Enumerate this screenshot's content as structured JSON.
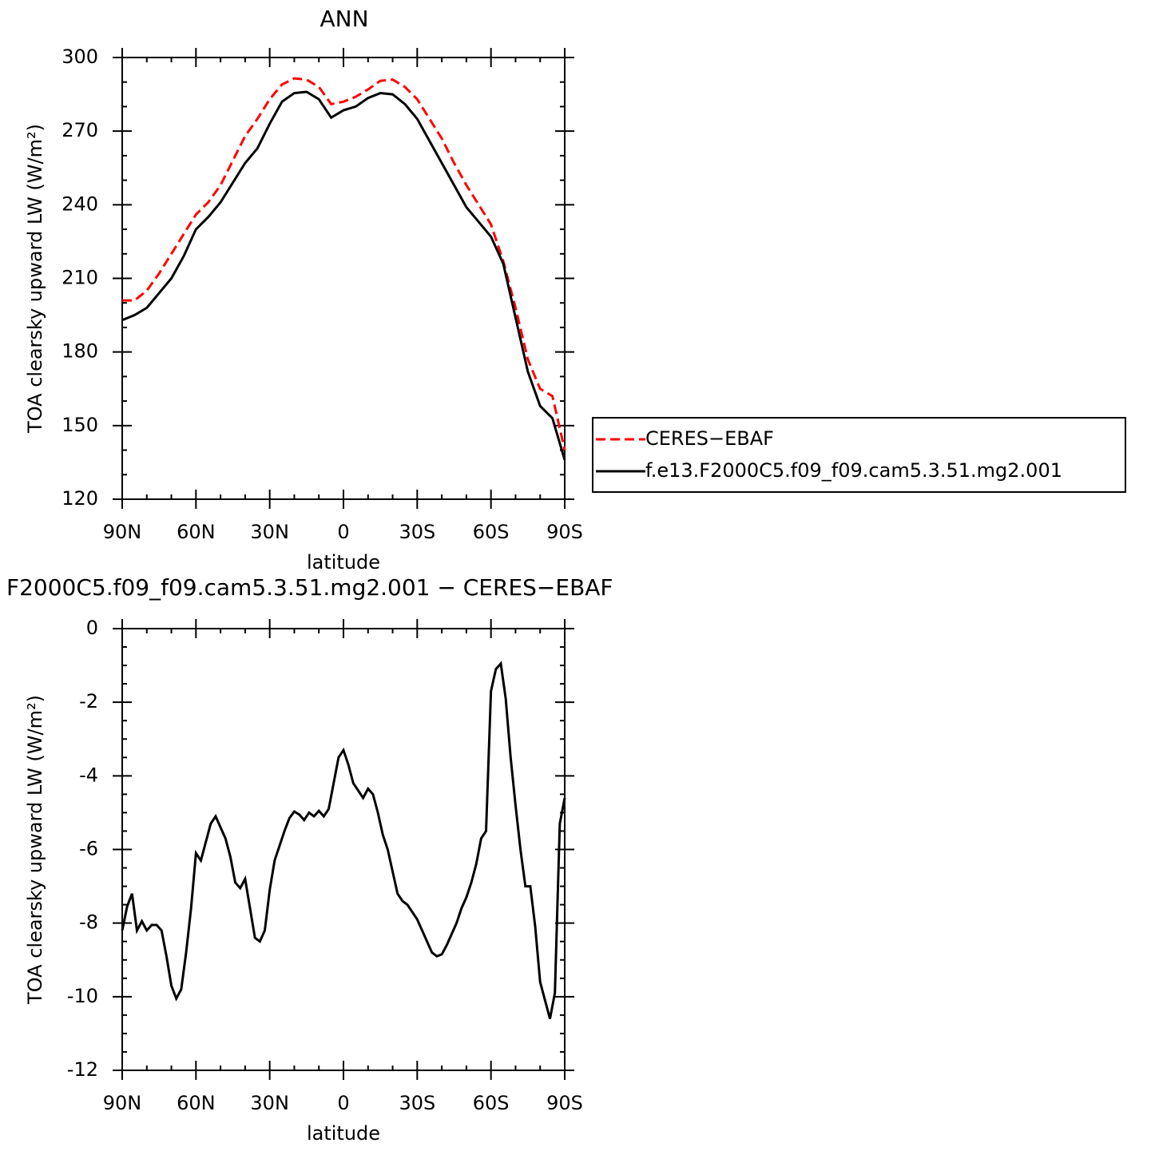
{
  "chart_data": [
    {
      "type": "line",
      "title": "ANN",
      "xlabel": "latitude",
      "ylabel": "TOA clearsky upward LW (W/m²)",
      "x": [
        90,
        85,
        80,
        75,
        70,
        65,
        60,
        55,
        50,
        45,
        40,
        35,
        30,
        25,
        20,
        15,
        10,
        5,
        0,
        -5,
        -10,
        -15,
        -20,
        -25,
        -30,
        -35,
        -40,
        -45,
        -50,
        -55,
        -60,
        -65,
        -70,
        -75,
        -80,
        -85,
        -90
      ],
      "series": [
        {
          "name": "CERES−EBAF",
          "color": "#ff0000",
          "dashed": true,
          "values": [
            201,
            201,
            205,
            212,
            220,
            228,
            236,
            241,
            248,
            258,
            268,
            275,
            283,
            289,
            291.5,
            291,
            288,
            281,
            282,
            284,
            287,
            290.5,
            291,
            288,
            283,
            275,
            267,
            257,
            248,
            240,
            232,
            217,
            198,
            177,
            165,
            162,
            140
          ]
        },
        {
          "name": "f.e13.F2000C5.f09_f09.cam5.3.51.mg2.001",
          "color": "#000000",
          "dashed": false,
          "values": [
            193,
            195,
            198,
            204,
            210,
            219,
            230,
            235,
            241,
            249,
            257,
            263,
            273,
            282,
            285.5,
            286,
            283,
            275.5,
            278.5,
            280,
            283.5,
            285.5,
            285,
            281,
            275,
            266,
            257,
            248,
            239,
            233,
            227,
            216,
            194,
            172,
            158,
            153,
            136
          ]
        }
      ],
      "xlim": [
        90,
        -90
      ],
      "xticks": [
        {
          "value": 90,
          "label": "90N"
        },
        {
          "value": 60,
          "label": "60N"
        },
        {
          "value": 30,
          "label": "30N"
        },
        0,
        {
          "value": -30,
          "label": "30S"
        },
        {
          "value": -60,
          "label": "60S"
        },
        {
          "value": -90,
          "label": "90S"
        }
      ],
      "xminorticks": [
        80,
        70,
        50,
        40,
        20,
        10,
        -10,
        -20,
        -40,
        -50,
        -70,
        -80
      ],
      "ylim": [
        120,
        300
      ],
      "yticks": [
        120,
        150,
        180,
        210,
        240,
        270,
        300
      ],
      "yminorticks": [
        130,
        140,
        160,
        170,
        190,
        200,
        220,
        230,
        250,
        260,
        280,
        290
      ],
      "legend": "right"
    },
    {
      "type": "line",
      "title": "F2000C5.f09_f09.cam5.3.51.mg2.001 − CERES−EBAF",
      "xlabel": "latitude",
      "ylabel": "TOA clearsky upward LW (W/m²)",
      "x": [
        90,
        88,
        86,
        84,
        82,
        80,
        78,
        76,
        74,
        72,
        70,
        68,
        66,
        64,
        62,
        60,
        58,
        56,
        54,
        52,
        50,
        48,
        46,
        44,
        42,
        40,
        38,
        36,
        34,
        32,
        30,
        28,
        26,
        24,
        22,
        20,
        18,
        16,
        14,
        12,
        10,
        8,
        6,
        4,
        2,
        0,
        -2,
        -4,
        -6,
        -8,
        -10,
        -12,
        -14,
        -16,
        -18,
        -20,
        -22,
        -24,
        -26,
        -28,
        -30,
        -32,
        -34,
        -36,
        -38,
        -40,
        -42,
        -44,
        -46,
        -48,
        -50,
        -52,
        -54,
        -56,
        -58,
        -60,
        -62,
        -64,
        -66,
        -68,
        -70,
        -72,
        -74,
        -76,
        -78,
        -80,
        -82,
        -84,
        -86,
        -88,
        -90
      ],
      "series": [
        {
          "color": "#000000",
          "dashed": false,
          "values": [
            -8.2,
            -7.55,
            -7.2,
            -8.2,
            -7.95,
            -8.2,
            -8.05,
            -8.05,
            -8.2,
            -8.9,
            -9.7,
            -10.05,
            -9.8,
            -8.8,
            -7.6,
            -6.1,
            -6.3,
            -5.8,
            -5.3,
            -5.1,
            -5.4,
            -5.7,
            -6.2,
            -6.9,
            -7.05,
            -6.8,
            -7.6,
            -8.4,
            -8.5,
            -8.2,
            -7.1,
            -6.3,
            -5.9,
            -5.5,
            -5.15,
            -4.97,
            -5.05,
            -5.2,
            -5.0,
            -5.1,
            -4.95,
            -5.1,
            -4.9,
            -4.2,
            -3.5,
            -3.3,
            -3.7,
            -4.2,
            -4.4,
            -4.6,
            -4.35,
            -4.5,
            -5.0,
            -5.6,
            -6.0,
            -6.6,
            -7.2,
            -7.4,
            -7.5,
            -7.7,
            -7.9,
            -8.2,
            -8.5,
            -8.8,
            -8.9,
            -8.85,
            -8.6,
            -8.3,
            -8.0,
            -7.6,
            -7.3,
            -6.9,
            -6.4,
            -5.7,
            -5.5,
            -1.7,
            -1.1,
            -0.95,
            -1.9,
            -3.5,
            -4.8,
            -6.0,
            -7.0,
            -7.0,
            -8.1,
            -9.6,
            -10.1,
            -10.6,
            -9.9,
            -5.3,
            -4.6
          ]
        }
      ],
      "xlim": [
        90,
        -90
      ],
      "xticks": [
        {
          "value": 90,
          "label": "90N"
        },
        {
          "value": 60,
          "label": "60N"
        },
        {
          "value": 30,
          "label": "30N"
        },
        0,
        {
          "value": -30,
          "label": "30S"
        },
        {
          "value": -60,
          "label": "60S"
        },
        {
          "value": -90,
          "label": "90S"
        }
      ],
      "xminorticks": [
        80,
        70,
        50,
        40,
        20,
        10,
        -10,
        -20,
        -40,
        -50,
        -70,
        -80
      ],
      "ylim": [
        -12,
        0
      ],
      "yticks": [
        -12,
        -10,
        -8,
        -6,
        -4,
        -2,
        0
      ],
      "yminorticks": [
        -0.5,
        -1,
        -1.5,
        -2.5,
        -3,
        -3.5,
        -4.5,
        -5,
        -5.5,
        -6.5,
        -7,
        -7.5,
        -8.5,
        -9,
        -9.5,
        -10.5,
        -11,
        -11.5
      ]
    }
  ]
}
